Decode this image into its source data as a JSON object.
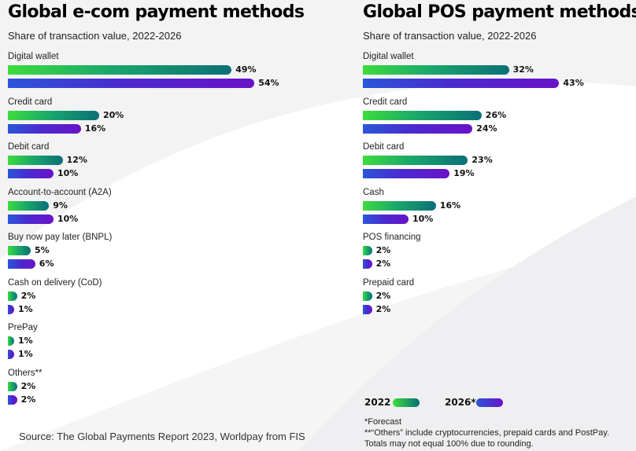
{
  "chart_data": [
    {
      "type": "bar",
      "orientation": "horizontal",
      "title": "Global e-com payment methods",
      "subtitle": "Share of transaction value, 2022-2026",
      "categories": [
        "Digital wallet",
        "Credit card",
        "Debit card",
        "Account-to-account (A2A)",
        "Buy now pay later (BNPL)",
        "Cash on delivery (CoD)",
        "PrePay",
        "Others**"
      ],
      "series": [
        {
          "name": "2022",
          "values": [
            49,
            20,
            12,
            9,
            5,
            2,
            1,
            2
          ],
          "labels": [
            "49%",
            "20%",
            "12%",
            "9%",
            "5%",
            "2%",
            "1%",
            "2%"
          ]
        },
        {
          "name": "2026*",
          "values": [
            54,
            16,
            10,
            10,
            6,
            1,
            1,
            2
          ],
          "labels": [
            "54%",
            "16%",
            "10%",
            "10%",
            "6%",
            "1%",
            "1%",
            "2%"
          ]
        }
      ],
      "unit": "%"
    },
    {
      "type": "bar",
      "orientation": "horizontal",
      "title": "Global POS payment methods",
      "subtitle": "Share of transaction value, 2022-2026",
      "categories": [
        "Digital wallet",
        "Credit card",
        "Debit card",
        "Cash",
        "POS financing",
        "Prepaid card"
      ],
      "series": [
        {
          "name": "2022",
          "values": [
            32,
            26,
            23,
            16,
            2,
            2
          ],
          "labels": [
            "32%",
            "26%",
            "23%",
            "16%",
            "2%",
            "2%"
          ]
        },
        {
          "name": "2026*",
          "values": [
            43,
            24,
            19,
            10,
            2,
            2
          ],
          "labels": [
            "43%",
            "24%",
            "19%",
            "10%",
            "2%",
            "2%"
          ]
        }
      ],
      "unit": "%"
    }
  ],
  "legend": {
    "items": [
      {
        "label": "2022",
        "color_start": "#3ddc3d",
        "color_end": "#0b6f77"
      },
      {
        "label": "2026*",
        "color_start": "#2b56d8",
        "color_end": "#6a12c8"
      }
    ]
  },
  "notes": [
    "*Forecast",
    "**“Others” include cryptocurrencies, prepaid cards and PostPay.",
    "Totals may not equal 100% due to rounding."
  ],
  "source": "Source: The Global Payments Report 2023, Worldpay from FIS"
}
